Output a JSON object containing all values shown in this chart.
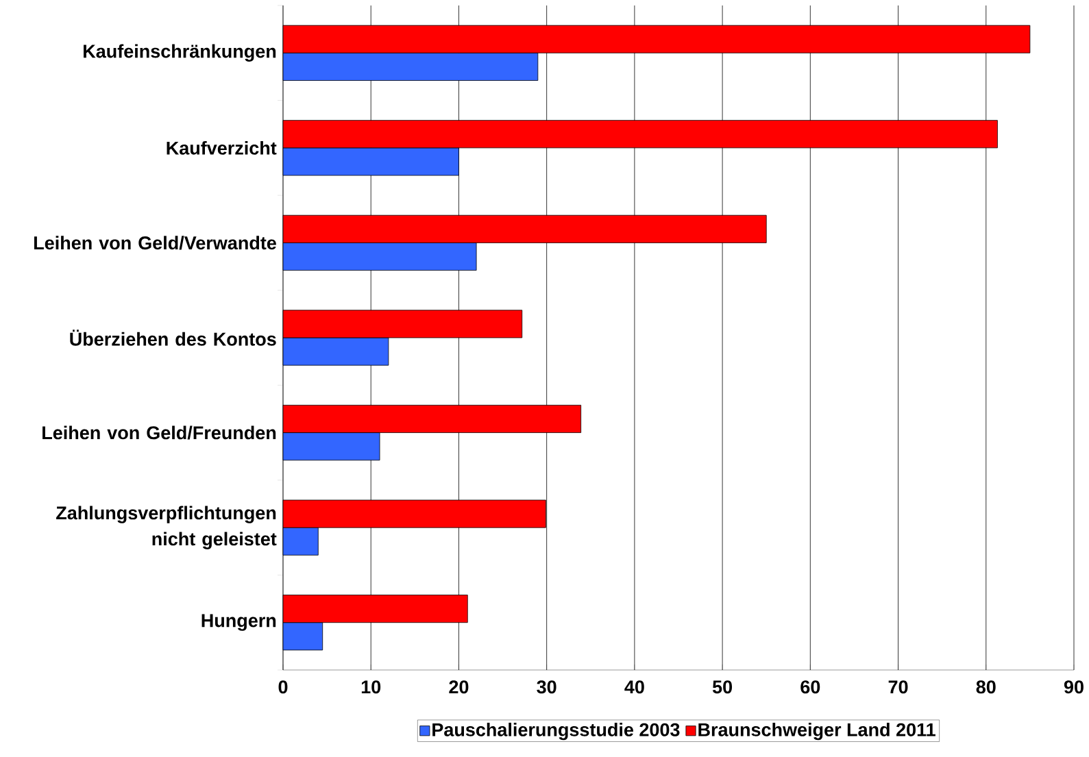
{
  "chart_data": {
    "type": "bar",
    "orientation": "horizontal",
    "categories": [
      "Kaufeinschränkungen",
      "Kaufverzicht",
      "Leihen von Geld/Verwandte",
      "Überziehen des Kontos",
      "Leihen von Geld/Freunden",
      "Zahlungsverpflichtungen nicht geleistet",
      "Hungern"
    ],
    "series": [
      {
        "name": "Pauschalierungsstudie 2003",
        "color": "#3366ff",
        "values": [
          29,
          20,
          22,
          12,
          11,
          4,
          4.5
        ]
      },
      {
        "name": "Braunschweiger Land 2011",
        "color": "#ff0000",
        "values": [
          85,
          81.3,
          55,
          27.2,
          33.9,
          29.9,
          21
        ]
      }
    ],
    "xlim": [
      0,
      90
    ],
    "xticks": [
      0,
      10,
      20,
      30,
      40,
      50,
      60,
      70,
      80,
      90
    ],
    "grid": "x",
    "legend": "bottom"
  }
}
